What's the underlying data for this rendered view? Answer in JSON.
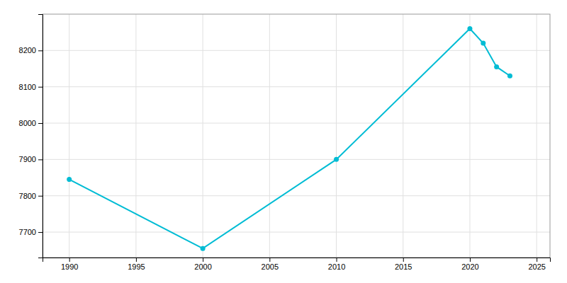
{
  "chart_data": {
    "type": "line",
    "x": [
      1990,
      2000,
      2010,
      2020,
      2021,
      2022,
      2023
    ],
    "values": [
      7845,
      7655,
      7900,
      8260,
      8220,
      8155,
      8130
    ],
    "color": "#00BCD4",
    "marker": "circle",
    "xlim": [
      1988,
      2026
    ],
    "ylim": [
      7630,
      8300
    ],
    "xticks": [
      1990,
      1995,
      2000,
      2005,
      2010,
      2015,
      2020,
      2025
    ],
    "yticks": [
      7700,
      7800,
      7900,
      8000,
      8100,
      8200
    ],
    "grid": true
  }
}
